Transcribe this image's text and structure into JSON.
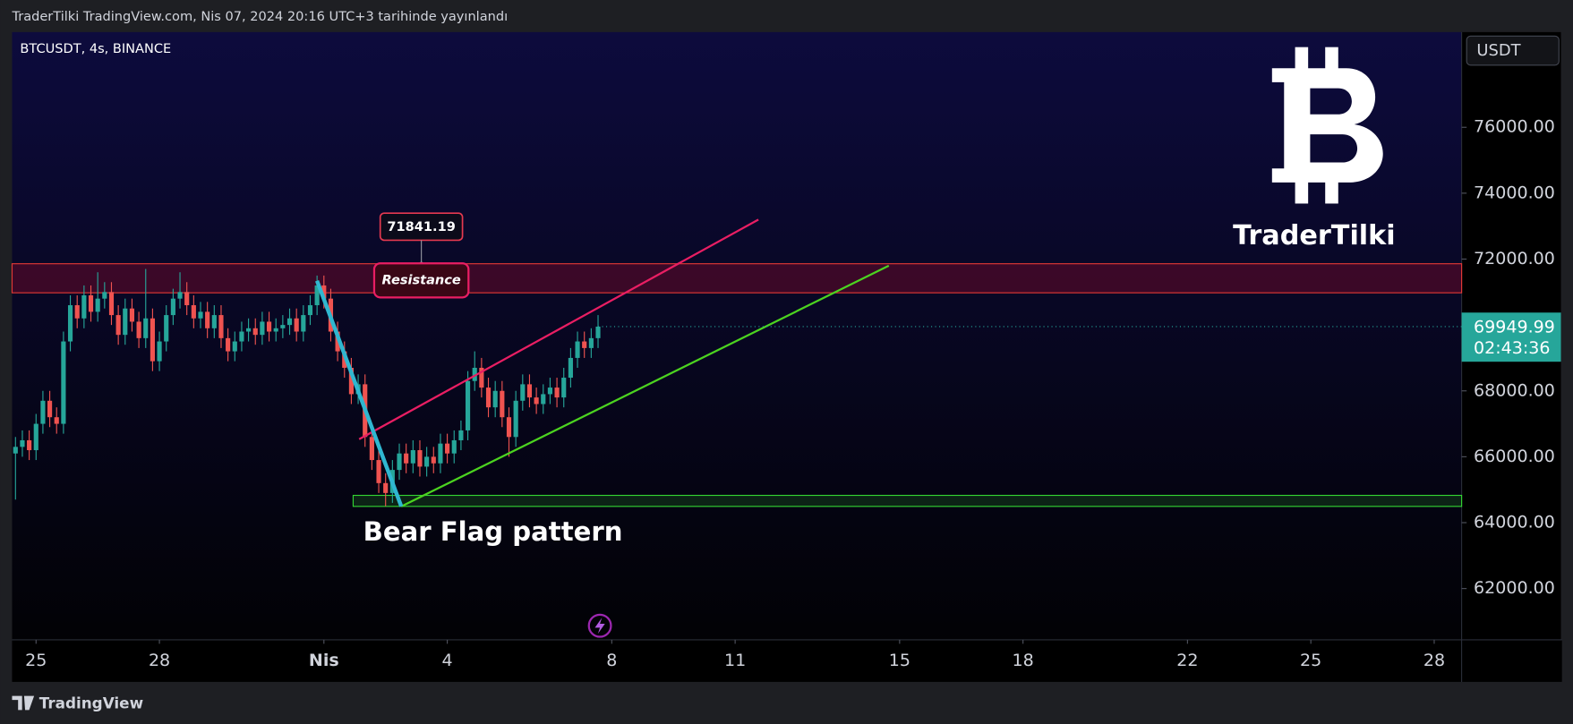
{
  "page": {
    "header": "TraderTilki TradingView.com, Nis 07, 2024 20:16 UTC+3 tarihinde yayınlandı",
    "currency": "USDT",
    "watermark": "TraderTilki",
    "countdown": "02:43:36",
    "footer": "TradingView"
  },
  "chart_data": {
    "type": "candlestick",
    "title": "BTCUSDT, 4s, BINANCE",
    "colors": {
      "up": "#26a69a",
      "down": "#ef5350"
    },
    "annotations": [
      {
        "text": "Resistance",
        "price": 71841.19
      },
      {
        "text": "Bear Flag pattern"
      }
    ],
    "xlim": [
      "2024-03-24 10:00",
      "2024-04-28 16:00"
    ],
    "xticks": [
      {
        "value": "2024-03-25",
        "label": "25"
      },
      {
        "value": "2024-03-28",
        "label": "28"
      },
      {
        "value": "2024-04-01",
        "label": "Nis"
      },
      {
        "value": "2024-04-04",
        "label": "4"
      },
      {
        "value": "2024-04-08",
        "label": "8"
      },
      {
        "value": "2024-04-11",
        "label": "11"
      },
      {
        "value": "2024-04-15",
        "label": "15"
      },
      {
        "value": "2024-04-18",
        "label": "18"
      },
      {
        "value": "2024-04-22",
        "label": "22"
      },
      {
        "value": "2024-04-25",
        "label": "25"
      },
      {
        "value": "2024-04-28",
        "label": "28"
      }
    ],
    "ylim": [
      60445,
      78890
    ],
    "yticks": [
      {
        "value": 62000,
        "label": "62000.00"
      },
      {
        "value": 64000,
        "label": "64000.00"
      },
      {
        "value": 66000,
        "label": "66000.00"
      },
      {
        "value": 68000,
        "label": "68000.00"
      },
      {
        "value": 72000,
        "label": "72000.00"
      },
      {
        "value": 74000,
        "label": "74000.00"
      },
      {
        "value": 76000,
        "label": "76000.00"
      }
    ],
    "candles": {
      "x": [
        "2024-03-24 12:00",
        "2024-03-24 16:00",
        "2024-03-24 20:00",
        "2024-03-25 00:00",
        "2024-03-25 04:00",
        "2024-03-25 08:00",
        "2024-03-25 12:00",
        "2024-03-25 16:00",
        "2024-03-25 20:00",
        "2024-03-26 00:00",
        "2024-03-26 04:00",
        "2024-03-26 08:00",
        "2024-03-26 12:00",
        "2024-03-26 16:00",
        "2024-03-26 20:00",
        "2024-03-27 00:00",
        "2024-03-27 04:00",
        "2024-03-27 08:00",
        "2024-03-27 12:00",
        "2024-03-27 16:00",
        "2024-03-27 20:00",
        "2024-03-28 00:00",
        "2024-03-28 04:00",
        "2024-03-28 08:00",
        "2024-03-28 12:00",
        "2024-03-28 16:00",
        "2024-03-28 20:00",
        "2024-03-29 00:00",
        "2024-03-29 04:00",
        "2024-03-29 08:00",
        "2024-03-29 12:00",
        "2024-03-29 16:00",
        "2024-03-29 20:00",
        "2024-03-30 00:00",
        "2024-03-30 04:00",
        "2024-03-30 08:00",
        "2024-03-30 12:00",
        "2024-03-30 16:00",
        "2024-03-30 20:00",
        "2024-03-31 00:00",
        "2024-03-31 04:00",
        "2024-03-31 08:00",
        "2024-03-31 12:00",
        "2024-03-31 16:00",
        "2024-03-31 20:00",
        "2024-04-01 00:00",
        "2024-04-01 04:00",
        "2024-04-01 08:00",
        "2024-04-01 12:00",
        "2024-04-01 16:00",
        "2024-04-01 20:00",
        "2024-04-02 00:00",
        "2024-04-02 04:00",
        "2024-04-02 08:00",
        "2024-04-02 12:00",
        "2024-04-02 16:00",
        "2024-04-02 20:00",
        "2024-04-03 00:00",
        "2024-04-03 04:00",
        "2024-04-03 08:00",
        "2024-04-03 12:00",
        "2024-04-03 16:00",
        "2024-04-03 20:00",
        "2024-04-04 00:00",
        "2024-04-04 04:00",
        "2024-04-04 08:00",
        "2024-04-04 12:00",
        "2024-04-04 16:00",
        "2024-04-04 20:00",
        "2024-04-05 00:00",
        "2024-04-05 04:00",
        "2024-04-05 08:00",
        "2024-04-05 12:00",
        "2024-04-05 16:00",
        "2024-04-05 20:00",
        "2024-04-06 00:00",
        "2024-04-06 04:00",
        "2024-04-06 08:00",
        "2024-04-06 12:00",
        "2024-04-06 16:00",
        "2024-04-06 20:00",
        "2024-04-07 00:00",
        "2024-04-07 04:00",
        "2024-04-07 08:00",
        "2024-04-07 12:00",
        "2024-04-07 16:00"
      ],
      "open": [
        66100,
        66300,
        66500,
        66200,
        67000,
        67700,
        67200,
        67000,
        69500,
        70600,
        70200,
        70900,
        70400,
        70800,
        71000,
        70300,
        69700,
        70500,
        70100,
        69600,
        70200,
        68900,
        69500,
        70300,
        70800,
        71000,
        70600,
        70200,
        70400,
        69900,
        70300,
        69600,
        69200,
        69500,
        69800,
        69900,
        69700,
        70100,
        69800,
        69900,
        70000,
        70200,
        69800,
        70300,
        70600,
        71200,
        70800,
        69800,
        69200,
        68700,
        67900,
        68200,
        66600,
        65900,
        65200,
        64900,
        65600,
        66100,
        65800,
        66200,
        65700,
        66000,
        65800,
        66400,
        66100,
        66500,
        66800,
        68300,
        68700,
        68100,
        67500,
        68000,
        67200,
        66600,
        67700,
        68200,
        67800,
        67600,
        67900,
        68100,
        67800,
        68400,
        69000,
        69500,
        69300,
        69600
      ],
      "high": [
        66600,
        66800,
        66800,
        67300,
        68000,
        68000,
        67500,
        69800,
        70900,
        70900,
        71200,
        71200,
        71600,
        71300,
        71300,
        70600,
        70800,
        70800,
        70400,
        71700,
        70500,
        69800,
        70600,
        71100,
        71600,
        71300,
        70900,
        70700,
        70700,
        70600,
        70600,
        69900,
        69800,
        70100,
        70200,
        70200,
        70400,
        70400,
        70200,
        70300,
        70500,
        70500,
        70600,
        70900,
        71500,
        71500,
        71100,
        70100,
        69500,
        69000,
        68500,
        68500,
        66900,
        66200,
        65500,
        65900,
        66400,
        66400,
        66500,
        66500,
        66300,
        66300,
        66700,
        66700,
        66800,
        67100,
        68600,
        69200,
        69000,
        68400,
        68300,
        68300,
        67500,
        68000,
        68500,
        68500,
        68100,
        68200,
        68400,
        68400,
        68700,
        69300,
        69800,
        69800,
        69900,
        70300
      ],
      "low": [
        64700,
        66000,
        65900,
        65900,
        66700,
        66900,
        66700,
        66700,
        69200,
        69900,
        69900,
        70100,
        70100,
        70500,
        70000,
        69400,
        69400,
        69800,
        69300,
        69300,
        68600,
        68600,
        69200,
        70000,
        70500,
        70300,
        69900,
        69900,
        69600,
        69600,
        69300,
        68900,
        68900,
        69200,
        69500,
        69400,
        69400,
        69500,
        69500,
        69600,
        69700,
        69500,
        69500,
        70000,
        70300,
        70500,
        69500,
        68900,
        68400,
        67600,
        67600,
        66300,
        65600,
        64900,
        64500,
        64600,
        65300,
        65500,
        65500,
        65400,
        65400,
        65500,
        65500,
        65800,
        65800,
        66200,
        66500,
        68000,
        67800,
        67200,
        67200,
        66900,
        66000,
        66300,
        67400,
        67500,
        67300,
        67300,
        67600,
        67500,
        67500,
        68100,
        68700,
        69000,
        69000,
        69300
      ],
      "close": [
        66300,
        66500,
        66200,
        67000,
        67700,
        67200,
        67000,
        69500,
        70600,
        70200,
        70900,
        70400,
        70800,
        71000,
        70300,
        69700,
        70500,
        70100,
        69600,
        70200,
        68900,
        69500,
        70300,
        70800,
        71000,
        70600,
        70200,
        70400,
        69900,
        70300,
        69600,
        69200,
        69500,
        69800,
        69900,
        69700,
        70100,
        69800,
        69900,
        70000,
        70200,
        69800,
        70300,
        70600,
        71200,
        70800,
        69800,
        69200,
        68700,
        67900,
        68200,
        66600,
        65900,
        65200,
        64900,
        65600,
        66100,
        65800,
        66200,
        65700,
        66000,
        65800,
        66400,
        66100,
        66500,
        66800,
        68300,
        68700,
        68100,
        67500,
        68000,
        67200,
        66600,
        67700,
        68200,
        67800,
        67600,
        67900,
        68100,
        67800,
        68400,
        69000,
        69500,
        69300,
        69600,
        69949.99
      ]
    }
  }
}
